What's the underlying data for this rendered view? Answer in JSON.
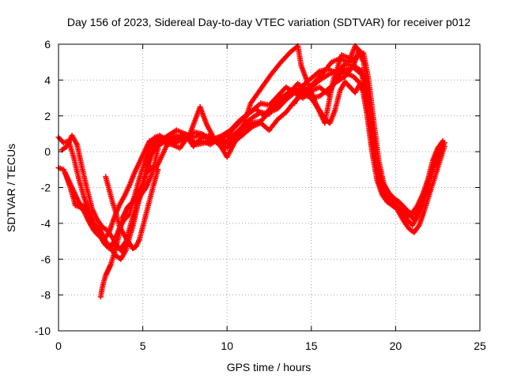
{
  "chart_data": {
    "type": "scatter",
    "title": "Day 156 of 2023, Sidereal Day-to-day VTEC variation (SDTVAR) for receiver p012",
    "xlabel": "GPS time / hours",
    "ylabel": "SDTVAR / TECUs",
    "xlim": [
      0,
      25
    ],
    "ylim": [
      -10,
      6
    ],
    "xticks": [
      0,
      5,
      10,
      15,
      20,
      25
    ],
    "yticks": [
      -10,
      -8,
      -6,
      -4,
      -2,
      0,
      2,
      4,
      6
    ],
    "grid": true,
    "marker": "plus",
    "color": "#ff0000",
    "series": [
      {
        "x": [
          0.0,
          0.3,
          0.6,
          0.9,
          1.2,
          1.5,
          1.8,
          2.1,
          2.4,
          2.7,
          3.0,
          3.3,
          3.6,
          3.9,
          4.2,
          4.5,
          4.8,
          5.1,
          5.4,
          5.7,
          6.0,
          6.5,
          7.0,
          7.5,
          8.0,
          8.5,
          9.0,
          9.5,
          10.0,
          10.5,
          11.0,
          11.5,
          12.0,
          12.5,
          13.0,
          13.5,
          14.0,
          14.5,
          15.0,
          15.5,
          16.0,
          16.5,
          17.0,
          17.5,
          18.0,
          18.3,
          18.6,
          18.9,
          19.2,
          19.5,
          19.8,
          20.1,
          20.4,
          20.7,
          21.0,
          21.3,
          21.6,
          21.9,
          22.2,
          22.5,
          22.8
        ],
        "y": [
          0.8,
          0.5,
          0.6,
          -0.3,
          -1.5,
          -2.5,
          -3.3,
          -4.2,
          -4.6,
          -5.1,
          -5.4,
          -5.0,
          -4.3,
          -3.8,
          -3.5,
          -2.5,
          -1.5,
          -0.6,
          0.2,
          0.8,
          0.9,
          0.6,
          0.8,
          0.9,
          0.5,
          0.6,
          0.4,
          0.7,
          0.9,
          1.4,
          1.9,
          2.3,
          2.7,
          2.6,
          3.1,
          3.6,
          3.3,
          3.7,
          4.1,
          4.5,
          4.6,
          4.4,
          4.9,
          4.8,
          4.5,
          2.8,
          1.0,
          -0.6,
          -2.0,
          -2.5,
          -2.7,
          -2.8,
          -3.0,
          -3.3,
          -3.5,
          -3.2,
          -2.6,
          -1.8,
          -0.9,
          0.0,
          0.4
        ]
      },
      {
        "x": [
          0.0,
          0.3,
          0.6,
          0.9,
          1.2,
          1.5,
          1.8,
          2.1,
          2.4,
          2.7,
          3.0,
          3.3,
          3.6,
          3.9,
          4.2,
          4.5,
          4.8,
          5.1,
          5.4,
          5.7,
          6.0,
          6.5,
          7.0,
          7.5,
          8.0,
          8.5,
          9.0,
          9.5,
          10.0,
          10.5,
          11.0,
          11.5,
          12.0,
          12.5,
          13.0,
          13.5,
          14.0,
          14.5,
          15.0,
          15.5,
          16.0,
          16.5,
          17.0,
          17.5,
          18.0,
          18.3,
          18.6,
          18.9,
          19.2,
          19.5,
          19.8,
          20.1,
          20.4,
          20.7,
          21.0,
          21.3,
          21.6,
          21.9,
          22.2,
          22.5,
          22.8
        ],
        "y": [
          -0.9,
          -1.0,
          -1.6,
          -2.2,
          -2.8,
          -3.3,
          -3.9,
          -4.4,
          -4.7,
          -4.9,
          -4.5,
          -3.7,
          -3.0,
          -2.5,
          -1.9,
          -1.2,
          -0.6,
          0.0,
          0.6,
          0.7,
          0.8,
          0.5,
          0.7,
          1.0,
          0.3,
          0.8,
          0.9,
          0.4,
          0.2,
          0.8,
          1.3,
          1.6,
          1.7,
          2.2,
          2.4,
          2.9,
          3.3,
          3.0,
          3.4,
          3.6,
          3.2,
          4.1,
          4.6,
          4.7,
          4.3,
          2.5,
          0.4,
          -1.1,
          -2.2,
          -2.6,
          -2.9,
          -3.1,
          -3.3,
          -3.6,
          -3.4,
          -3.0,
          -2.4,
          -1.6,
          -0.5,
          0.2,
          0.6
        ]
      },
      {
        "x": [
          0.2,
          0.5,
          0.8,
          1.1,
          1.4,
          1.7,
          2.0,
          2.3,
          2.6,
          2.9,
          3.2,
          3.5,
          3.8,
          4.1,
          4.4,
          4.7,
          5.0,
          5.3,
          5.6,
          6.0,
          6.5,
          7.0,
          7.5,
          8.0,
          8.5,
          9.0,
          9.5,
          10.0,
          10.5,
          11.0,
          11.5,
          12.0,
          12.5,
          13.0,
          13.5,
          14.0,
          14.5,
          15.0,
          15.5,
          16.0,
          16.5,
          17.0,
          17.5,
          18.0,
          18.3,
          18.6,
          18.9,
          19.2,
          19.5,
          19.8,
          20.1,
          20.4,
          20.7,
          21.0,
          21.3,
          21.6,
          21.9,
          22.2,
          22.5,
          22.8
        ],
        "y": [
          0.1,
          0.3,
          0.9,
          0.4,
          -0.9,
          -2.1,
          -3.2,
          -3.8,
          -4.2,
          -4.4,
          -4.8,
          -5.3,
          -5.6,
          -5.1,
          -4.2,
          -3.0,
          -1.8,
          -0.8,
          0.4,
          0.7,
          0.7,
          0.9,
          0.6,
          1.1,
          1.0,
          0.6,
          0.8,
          0.5,
          1.0,
          1.5,
          1.9,
          2.2,
          2.1,
          2.7,
          3.2,
          3.5,
          3.1,
          3.6,
          4.0,
          4.3,
          4.5,
          4.4,
          4.2,
          3.7,
          2.1,
          0.0,
          -1.6,
          -2.4,
          -2.8,
          -3.0,
          -3.2,
          -3.5,
          -3.8,
          -4.1,
          -3.6,
          -2.9,
          -2.0,
          -1.0,
          -0.2,
          0.3
        ]
      },
      {
        "x": [
          0.4,
          0.7,
          1.0,
          1.3,
          1.6,
          1.9,
          2.2,
          2.5,
          2.8,
          3.1,
          3.4,
          3.7,
          4.0,
          4.3,
          4.6,
          4.9,
          5.2,
          5.5,
          5.8,
          6.2,
          6.7,
          7.2,
          7.7,
          8.2,
          8.7,
          9.2,
          9.7,
          10.2,
          10.7,
          11.2,
          11.7,
          12.2,
          12.7,
          13.2,
          13.7,
          14.2,
          14.7,
          15.2,
          15.7,
          16.2,
          16.7,
          17.2,
          17.7,
          18.1,
          18.4,
          18.7,
          19.0,
          19.3,
          19.6,
          19.9,
          20.2,
          20.5,
          20.8,
          21.1,
          21.4,
          21.7,
          22.0,
          22.3,
          22.6,
          22.9
        ],
        "y": [
          -1.2,
          -2.0,
          -3.0,
          -3.1,
          -3.4,
          -3.8,
          -4.1,
          -4.4,
          -5.0,
          -5.4,
          -5.8,
          -6.0,
          -5.5,
          -4.4,
          -3.2,
          -2.1,
          -1.0,
          -0.2,
          0.3,
          0.5,
          0.4,
          0.6,
          0.8,
          0.4,
          0.5,
          0.7,
          0.9,
          1.2,
          1.7,
          2.1,
          2.4,
          2.0,
          2.6,
          3.0,
          3.3,
          3.8,
          3.4,
          3.9,
          4.4,
          5.0,
          5.2,
          5.0,
          5.3,
          5.5,
          4.0,
          1.7,
          -0.5,
          -1.8,
          -2.3,
          -2.6,
          -2.8,
          -3.1,
          -3.5,
          -3.8,
          -3.3,
          -2.6,
          -1.8,
          -0.8,
          0.0,
          0.5
        ]
      },
      {
        "x": [
          1.0,
          1.3,
          1.6,
          1.9,
          2.2,
          2.5,
          2.8,
          3.1,
          3.4,
          3.7,
          4.0,
          4.3,
          4.6,
          4.9,
          5.2,
          5.6,
          6.0,
          6.5,
          7.0,
          7.5,
          8.0,
          8.5,
          9.0,
          9.5,
          10.0,
          10.5,
          11.0,
          11.5,
          12.0,
          12.5,
          13.0,
          13.5,
          14.0,
          14.5,
          15.0,
          15.5,
          16.0,
          16.5,
          17.0,
          17.5,
          17.8,
          18.1,
          18.4,
          18.7,
          19.0,
          19.3,
          19.6,
          19.9,
          20.2,
          20.5,
          20.8,
          21.1,
          21.4,
          21.7,
          22.0,
          22.3,
          22.6,
          22.9
        ],
        "y": [
          -2.9,
          -3.0,
          -3.0,
          -3.6,
          -4.2,
          -4.7,
          -5.2,
          -5.2,
          -5.3,
          -5.4,
          -5.0,
          -4.0,
          -3.0,
          -2.4,
          -2.0,
          -1.1,
          0.6,
          0.9,
          1.2,
          1.0,
          0.8,
          1.0,
          0.7,
          0.5,
          -0.3,
          0.6,
          1.0,
          1.4,
          1.6,
          1.2,
          1.8,
          2.2,
          2.8,
          3.2,
          3.0,
          3.1,
          3.5,
          3.9,
          4.2,
          4.8,
          5.6,
          5.0,
          2.5,
          0.2,
          -1.3,
          -2.0,
          -2.4,
          -2.9,
          -3.4,
          -3.9,
          -4.3,
          -4.5,
          -4.1,
          -3.3,
          -2.4,
          -1.5,
          -0.6,
          0.3
        ]
      },
      {
        "x": [
          2.5,
          2.6,
          2.7,
          2.8,
          2.9,
          3.0,
          3.1,
          3.2,
          3.3,
          3.4,
          3.5,
          3.6,
          3.7,
          3.8,
          3.9,
          4.0,
          4.1,
          4.2,
          4.3,
          4.4,
          4.5,
          4.6,
          4.7,
          4.8,
          4.9,
          5.0,
          5.2,
          5.5,
          5.8,
          6.5,
          7.2,
          7.8,
          8.4,
          8.8,
          9.2,
          9.8,
          10.3,
          10.9,
          11.4,
          12.0,
          12.6,
          13.2,
          13.8,
          14.2,
          14.4,
          14.8,
          15.3,
          15.8,
          16.3,
          16.8,
          17.3,
          17.6,
          17.8,
          18.0
        ],
        "y": [
          -8.1,
          -7.6,
          -7.2,
          -6.9,
          -6.7,
          -6.5,
          -6.3,
          -6.0,
          -5.7,
          -5.4,
          -5.0,
          -4.6,
          -4.1,
          -3.7,
          -3.5,
          -3.3,
          -3.1,
          -3.0,
          -2.9,
          -2.8,
          -2.6,
          -2.5,
          -2.3,
          -2.1,
          -2.0,
          -2.0,
          -1.2,
          -0.9,
          -0.9,
          0.5,
          0.2,
          1.0,
          2.5,
          1.5,
          0.8,
          0.4,
          0.9,
          1.3,
          2.7,
          3.5,
          4.3,
          5.0,
          5.6,
          5.9,
          4.8,
          3.8,
          2.6,
          1.6,
          4.0,
          5.4,
          5.2,
          5.9,
          5.7,
          5.5
        ]
      },
      {
        "x": [
          2.8,
          3.0,
          3.2,
          3.4,
          3.6,
          3.8,
          4.0,
          4.2,
          4.4,
          4.6,
          4.8,
          5.0,
          5.3,
          5.6,
          5.9
        ],
        "y": [
          -1.4,
          -2.1,
          -2.8,
          -3.4,
          -4.1,
          -4.5,
          -4.8,
          -5.1,
          -5.4,
          -5.3,
          -4.9,
          -4.2,
          -3.1,
          -2.0,
          -1.0
        ]
      },
      {
        "x": [
          14.0,
          14.3,
          14.6,
          14.9,
          15.2,
          15.5,
          15.8,
          16.1,
          16.4,
          16.7,
          17.0,
          17.3,
          17.6,
          17.9,
          18.1,
          18.3
        ],
        "y": [
          2.7,
          3.2,
          3.6,
          3.1,
          2.7,
          2.3,
          1.8,
          1.6,
          2.3,
          3.4,
          3.9,
          3.6,
          3.3,
          3.8,
          3.3,
          2.4
        ]
      }
    ]
  }
}
